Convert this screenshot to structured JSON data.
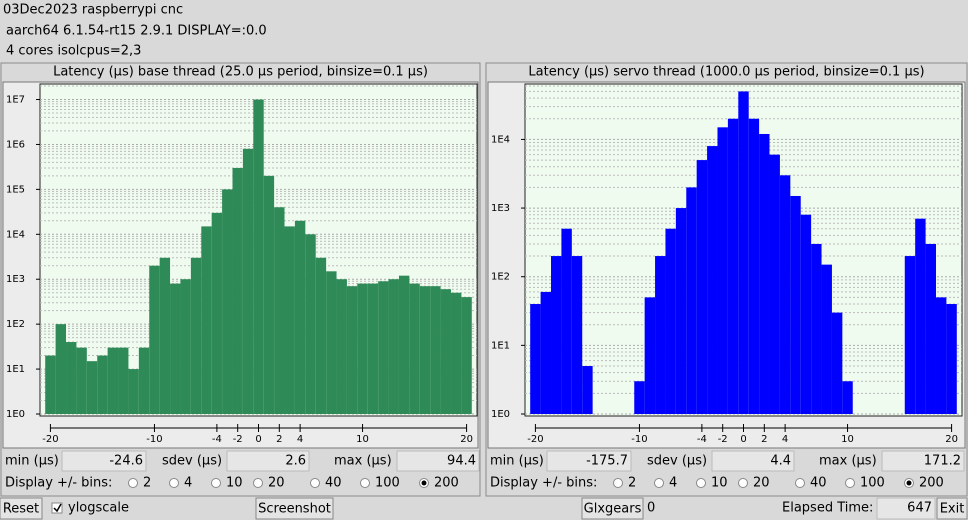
{
  "header": {
    "lines": [
      "03Dec2023 raspberrypi cnc",
      "aarch64  6.1.54-rt15  2.9.1  DISPLAY=:0.0",
      "4 cores  isolcpus=2,3"
    ]
  },
  "chart_data": [
    {
      "type": "bar",
      "title": "Latency (µs) base thread (25.0 µs period, binsize=0.1 µs)",
      "x": [
        -20,
        -19,
        -18,
        -17,
        -16,
        -15,
        -14,
        -13,
        -12,
        -11,
        -10,
        -9,
        -8,
        -7,
        -6,
        -5,
        -4,
        -3,
        -2,
        -1,
        0,
        1,
        2,
        3,
        4,
        5,
        6,
        7,
        8,
        9,
        10,
        11,
        12,
        13,
        14,
        15,
        16,
        17,
        18,
        19,
        20
      ],
      "values": [
        20,
        100,
        40,
        30,
        15,
        20,
        30,
        30,
        10,
        30,
        2000,
        3000,
        800,
        1000,
        3000,
        15000,
        30000,
        100000,
        300000,
        800000,
        10000000,
        200000,
        40000,
        15000,
        20000,
        10000,
        3000,
        1500,
        1000,
        700,
        800,
        800,
        900,
        1000,
        1200,
        800,
        700,
        700,
        600,
        500,
        400
      ],
      "color": "#2e8b57",
      "log_scale": true,
      "grid": true,
      "xlim": [
        -21,
        21
      ],
      "xticks": [
        -20,
        -10,
        -4,
        -2,
        0,
        2,
        4,
        10,
        20
      ],
      "ylim": [
        1,
        20000000
      ],
      "yticks": [
        {
          "value": 1,
          "label": "1E0"
        },
        {
          "value": 10,
          "label": "1E1"
        },
        {
          "value": 100,
          "label": "1E2"
        },
        {
          "value": 1000,
          "label": "1E3"
        },
        {
          "value": 10000,
          "label": "1E4"
        },
        {
          "value": 100000,
          "label": "1E5"
        },
        {
          "value": 1000000,
          "label": "1E6"
        },
        {
          "value": 10000000,
          "label": "1E7"
        }
      ]
    },
    {
      "type": "bar",
      "title": "Latency (µs) servo thread (1000.0 µs period, binsize=0.1 µs)",
      "x": [
        -20,
        -19,
        -18,
        -17,
        -16,
        -15,
        -14,
        -13,
        -12,
        -11,
        -10,
        -9,
        -8,
        -7,
        -6,
        -5,
        -4,
        -3,
        -2,
        -1,
        0,
        1,
        2,
        3,
        4,
        5,
        6,
        7,
        8,
        9,
        10,
        11,
        12,
        13,
        14,
        15,
        16,
        17,
        18,
        19,
        20
      ],
      "values": [
        40,
        60,
        200,
        500,
        200,
        5,
        1,
        1,
        1,
        1,
        3,
        50,
        200,
        500,
        1000,
        2000,
        5000,
        8000,
        15000,
        20000,
        50000,
        20000,
        12000,
        6000,
        3000,
        1500,
        800,
        300,
        150,
        30,
        3,
        1,
        1,
        1,
        1,
        1,
        200,
        700,
        300,
        50,
        40
      ],
      "color": "#0000ff",
      "log_scale": true,
      "grid": true,
      "xlim": [
        -21,
        21
      ],
      "xticks": [
        -20,
        -10,
        -4,
        -2,
        0,
        2,
        4,
        10,
        20
      ],
      "ylim": [
        1,
        60000
      ],
      "yticks": [
        {
          "value": 1,
          "label": "1E0"
        },
        {
          "value": 10,
          "label": "1E1"
        },
        {
          "value": 100,
          "label": "1E2"
        },
        {
          "value": 1000,
          "label": "1E3"
        },
        {
          "value": 10000,
          "label": "1E4"
        }
      ]
    }
  ],
  "panels": [
    {
      "min_label": "min (µs)",
      "min": -24.6,
      "sdev_label": "sdev (µs)",
      "sdev": 2.6,
      "max_label": "max (µs)",
      "max": 94.4,
      "bins_label": "Display +/- bins:",
      "bins_options": [
        2,
        4,
        10,
        20,
        40,
        100,
        200
      ],
      "bins_selected": 200
    },
    {
      "min_label": "min (µs)",
      "min": -175.7,
      "sdev_label": "sdev (µs)",
      "sdev": 4.4,
      "max_label": "max (µs)",
      "max": 171.2,
      "bins_label": "Display +/- bins:",
      "bins_options": [
        2,
        4,
        10,
        20,
        40,
        100,
        200
      ],
      "bins_selected": 200
    }
  ],
  "footer": {
    "reset": "Reset",
    "ylogscale": "ylogscale",
    "ylogscale_checked": true,
    "screenshot": "Screenshot",
    "glxgears": "Glxgears",
    "glxgears_value": 0,
    "elapsed_label": "Elapsed Time:",
    "elapsed": 647,
    "exit": "Exit"
  }
}
